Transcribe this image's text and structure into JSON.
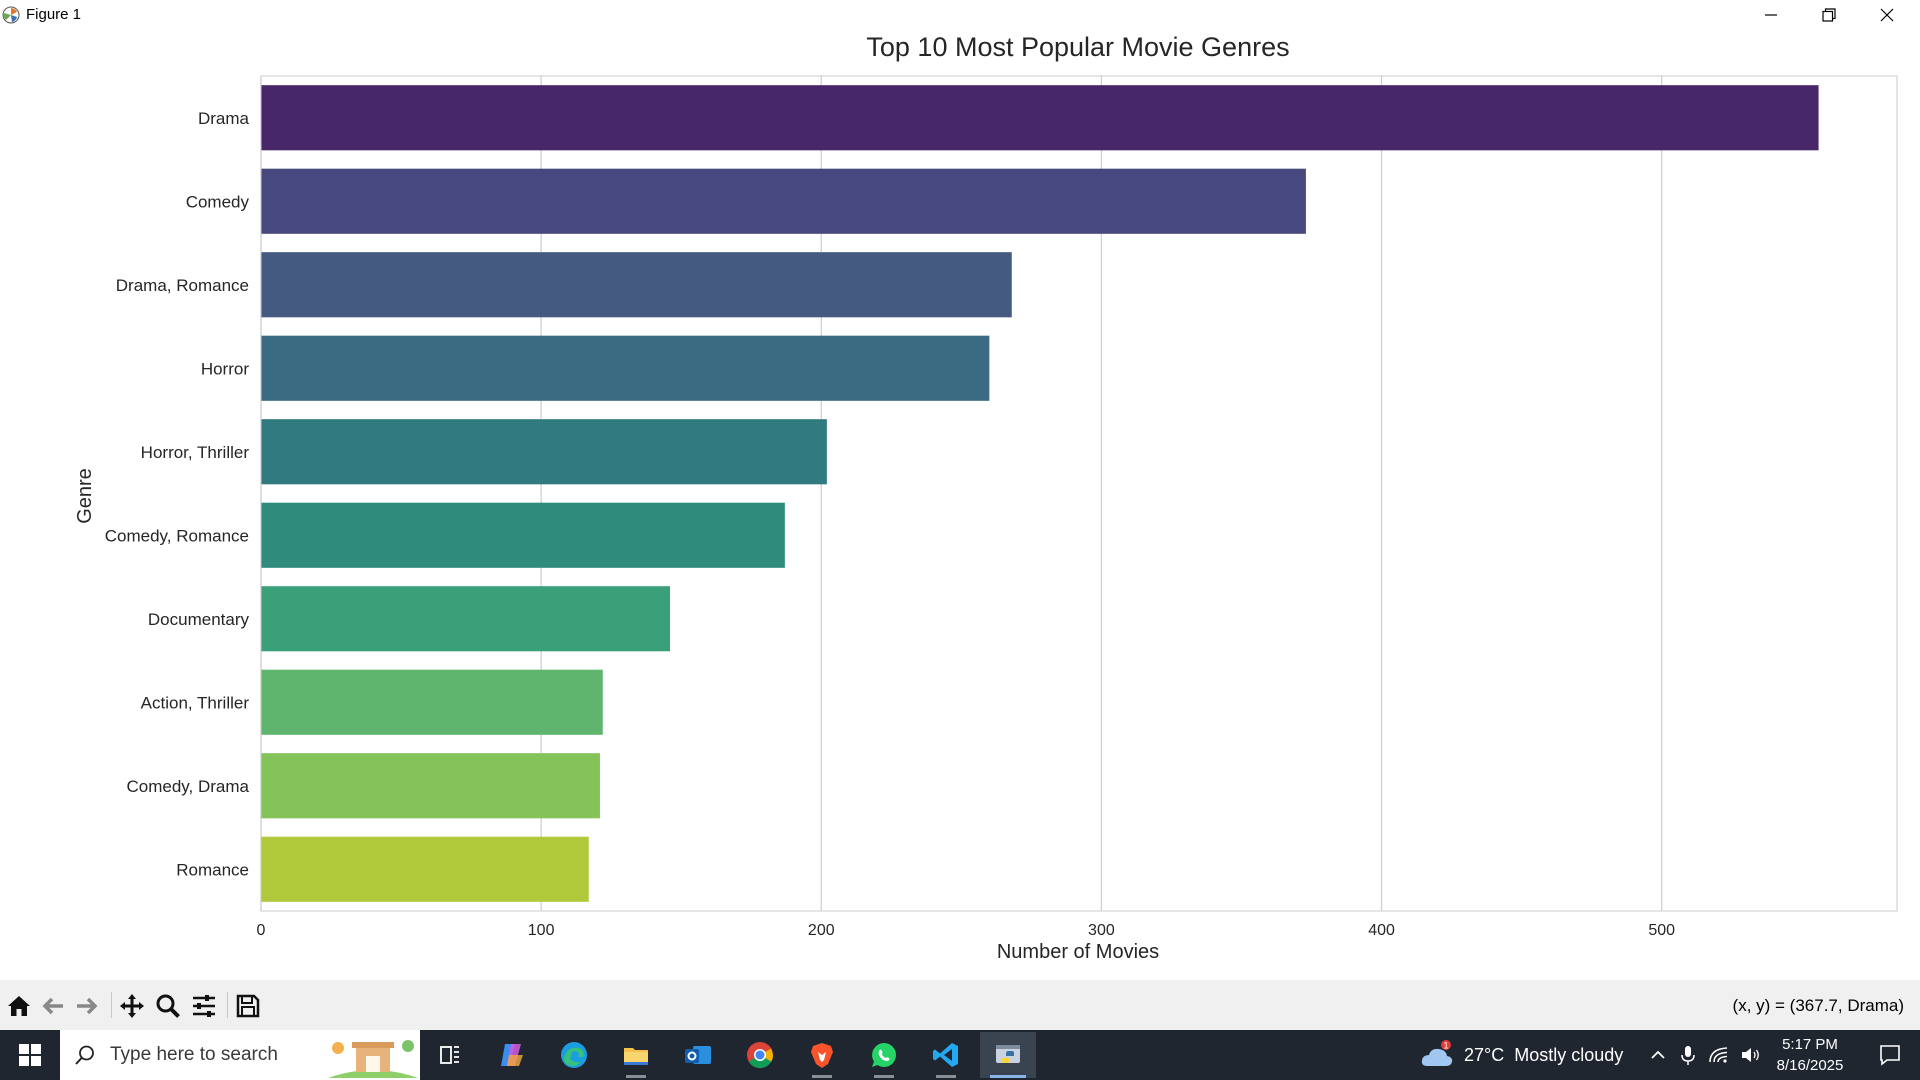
{
  "window": {
    "title": "Figure 1",
    "icon": "matplotlib-icon"
  },
  "chart_data": {
    "type": "bar",
    "orientation": "horizontal",
    "title": "Top 10 Most Popular Movie Genres",
    "xlabel": "Number of Movies",
    "ylabel": "Genre",
    "categories": [
      "Drama",
      "Comedy",
      "Drama, Romance",
      "Horror",
      "Horror, Thriller",
      "Comedy, Romance",
      "Documentary",
      "Action, Thriller",
      "Comedy, Drama",
      "Romance"
    ],
    "values": [
      556,
      373,
      268,
      260,
      202,
      187,
      146,
      122,
      121,
      117
    ],
    "colors": [
      "#482768",
      "#47497e",
      "#445a80",
      "#3a6b82",
      "#317a80",
      "#2f8b7c",
      "#39a079",
      "#5fb56e",
      "#84c357",
      "#b0c93a"
    ],
    "xlim": [
      0,
      584
    ],
    "xticks": [
      "0",
      "100",
      "200",
      "300",
      "400",
      "500"
    ],
    "xtick_values": [
      0,
      100,
      200,
      300,
      400,
      500
    ],
    "grid": "vertical"
  },
  "toolbar": {
    "buttons": [
      "home-icon",
      "back-icon",
      "forward-icon",
      "pan-icon",
      "zoom-icon",
      "configure-subplots-icon",
      "save-icon"
    ],
    "coords": "(x, y) = (367.7, Drama)"
  },
  "taskbar": {
    "search_placeholder": "Type here to search",
    "apps": [
      "task-view-icon",
      "copilot-icon",
      "edge-icon",
      "file-explorer-icon",
      "outlook-icon",
      "chrome-icon",
      "brave-icon",
      "whatsapp-icon",
      "vscode-icon",
      "python-icon"
    ],
    "weather": {
      "temp": "27°C",
      "condition": "Mostly cloudy",
      "badge": "1"
    },
    "time": "5:17 PM",
    "date": "8/16/2025"
  }
}
